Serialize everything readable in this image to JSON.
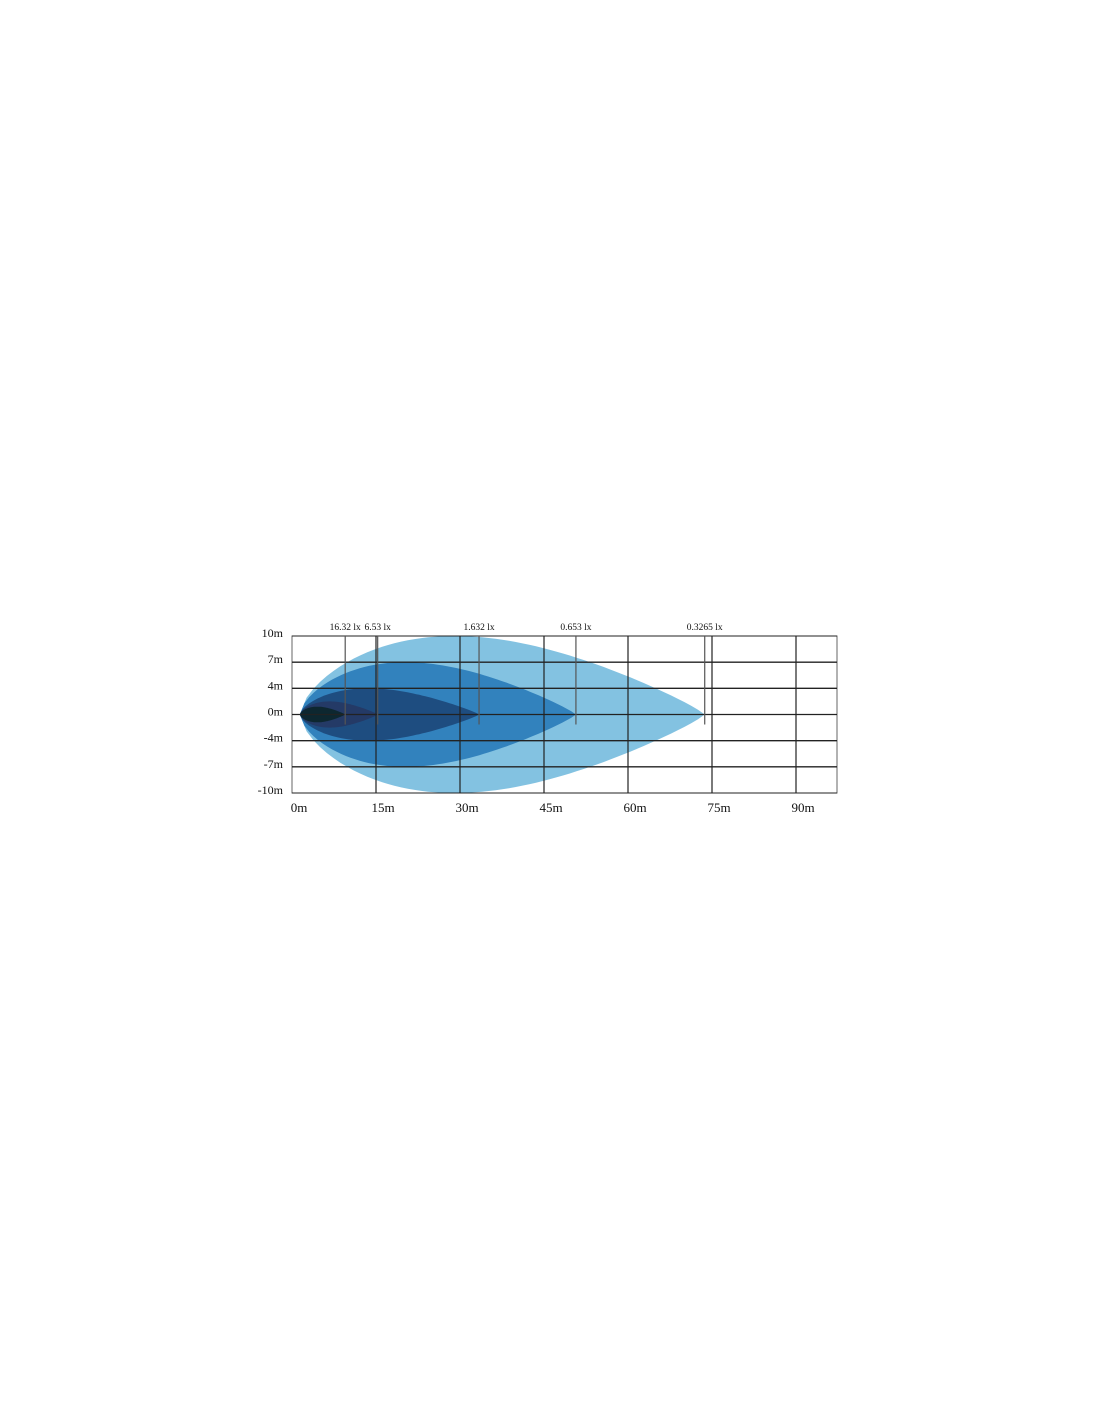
{
  "chart_data": {
    "type": "area",
    "title": "",
    "xlabel": "",
    "ylabel": "",
    "x_ticks": [
      "0m",
      "15m",
      "30m",
      "45m",
      "60m",
      "75m",
      "90m"
    ],
    "x_tick_values": [
      0,
      15,
      30,
      45,
      60,
      75,
      90
    ],
    "y_ticks": [
      "10m",
      "7m",
      "4m",
      "0m",
      "-4m",
      "-7m",
      "-10m"
    ],
    "y_tick_values": [
      10,
      7,
      4,
      0,
      -4,
      -7,
      -10
    ],
    "xlim": [
      0,
      97.5
    ],
    "ylim": [
      -10,
      10
    ],
    "grid": true,
    "series": [
      {
        "name": "0.3265 lx",
        "reach_m": 73.7,
        "half_width_m": 10,
        "color": "#7cbfdf"
      },
      {
        "name": "0.653 lx",
        "reach_m": 50.7,
        "half_width_m": 7,
        "color": "#3282bd"
      },
      {
        "name": "1.632 lx",
        "reach_m": 33.4,
        "half_width_m": 4,
        "color": "#1e4d80"
      },
      {
        "name": "6.53 lx",
        "reach_m": 15.3,
        "half_width_m": 2,
        "color": "#243a66"
      },
      {
        "name": "16.32 lx",
        "reach_m": 9.5,
        "half_width_m": 1.2,
        "color": "#0d2730"
      }
    ]
  }
}
